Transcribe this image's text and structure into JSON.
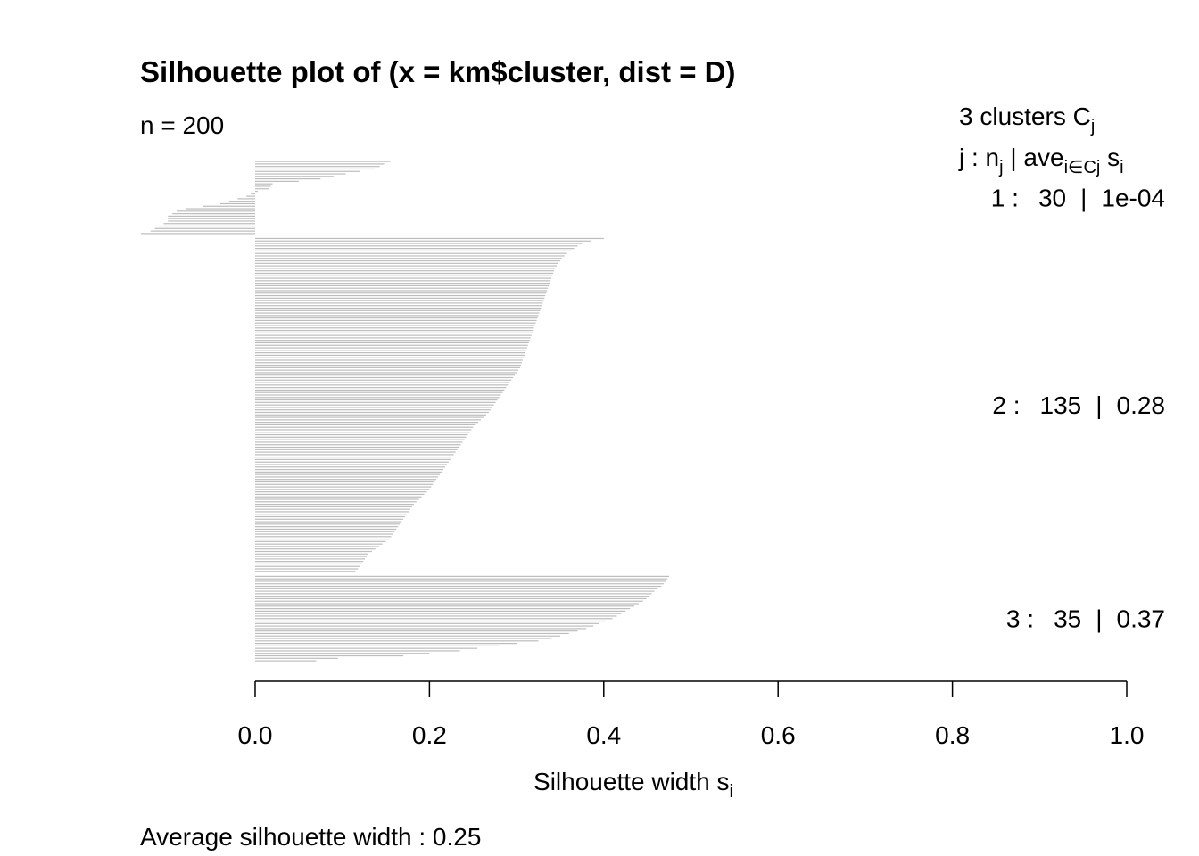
{
  "chart_data": {
    "type": "bar",
    "orientation": "horizontal",
    "title": "Silhouette plot of (x = km$cluster, dist = D)",
    "n_label": "n = 200",
    "footer": "Average silhouette width :  0.25",
    "x_label": "Silhouette width s",
    "x_label_sub": "i",
    "legend_title": [
      "3  clusters  C",
      "j"
    ],
    "legend_columns": [
      "j :  n",
      "j",
      " | ave",
      "i∈Cj",
      "  s",
      "i"
    ],
    "cluster_labels": [
      "1 :",
      "2 :",
      "3 :"
    ],
    "cluster_n": [
      30,
      135,
      35
    ],
    "cluster_separator": "|",
    "cluster_ave": [
      0.0001,
      0.28,
      0.37
    ],
    "cluster_ave_labels": [
      "1e-04",
      "0.28",
      "0.37"
    ],
    "color": "#bdbdbd",
    "xlim": [
      -0.131,
      1
    ],
    "xticks": [
      {
        "value": 0,
        "label": "0.0"
      },
      0.2,
      0.4,
      0.6,
      0.8,
      {
        "value": 1,
        "label": "1.0"
      }
    ],
    "series": [
      {
        "name": "1",
        "values": [
          0.155,
          0.148,
          0.143,
          0.137,
          0.12,
          0.104,
          0.09,
          0.075,
          0.05,
          0.02,
          0.018,
          0.016,
          0.003,
          -0.005,
          -0.01,
          -0.02,
          -0.03,
          -0.04,
          -0.06,
          -0.08,
          -0.09,
          -0.095,
          -0.1,
          -0.1,
          -0.1,
          -0.105,
          -0.11,
          -0.115,
          -0.12,
          -0.131
        ]
      },
      {
        "name": "2",
        "values": [
          0.4,
          0.385,
          0.375,
          0.37,
          0.366,
          0.362,
          0.358,
          0.355,
          0.352,
          0.35,
          0.348,
          0.346,
          0.344,
          0.343,
          0.342,
          0.341,
          0.34,
          0.339,
          0.338,
          0.337,
          0.336,
          0.335,
          0.334,
          0.333,
          0.332,
          0.331,
          0.33,
          0.329,
          0.328,
          0.327,
          0.326,
          0.325,
          0.324,
          0.323,
          0.322,
          0.321,
          0.32,
          0.319,
          0.318,
          0.317,
          0.316,
          0.315,
          0.314,
          0.313,
          0.312,
          0.311,
          0.31,
          0.309,
          0.308,
          0.307,
          0.306,
          0.305,
          0.304,
          0.302,
          0.3,
          0.298,
          0.296,
          0.294,
          0.292,
          0.29,
          0.288,
          0.286,
          0.284,
          0.282,
          0.28,
          0.278,
          0.276,
          0.274,
          0.272,
          0.27,
          0.268,
          0.265,
          0.262,
          0.259,
          0.256,
          0.253,
          0.25,
          0.248,
          0.246,
          0.244,
          0.242,
          0.24,
          0.238,
          0.236,
          0.234,
          0.232,
          0.23,
          0.228,
          0.226,
          0.224,
          0.222,
          0.22,
          0.218,
          0.216,
          0.214,
          0.212,
          0.21,
          0.208,
          0.206,
          0.204,
          0.202,
          0.2,
          0.197,
          0.194,
          0.191,
          0.188,
          0.185,
          0.182,
          0.18,
          0.178,
          0.176,
          0.174,
          0.172,
          0.17,
          0.168,
          0.166,
          0.164,
          0.162,
          0.16,
          0.158,
          0.156,
          0.154,
          0.15,
          0.146,
          0.142,
          0.138,
          0.134,
          0.13,
          0.128,
          0.126,
          0.124,
          0.122,
          0.12,
          0.118,
          0.115
        ]
      },
      {
        "name": "3",
        "values": [
          0.475,
          0.473,
          0.471,
          0.469,
          0.466,
          0.462,
          0.458,
          0.455,
          0.452,
          0.449,
          0.445,
          0.44,
          0.435,
          0.43,
          0.425,
          0.42,
          0.415,
          0.41,
          0.402,
          0.395,
          0.388,
          0.38,
          0.37,
          0.36,
          0.35,
          0.34,
          0.325,
          0.3,
          0.28,
          0.255,
          0.235,
          0.2,
          0.17,
          0.095,
          0.07
        ]
      }
    ]
  }
}
